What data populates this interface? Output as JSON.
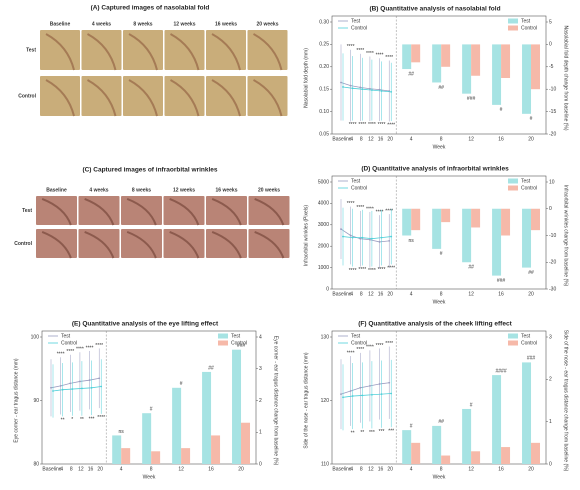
{
  "images": [
    {
      "title": "(A) Captured images of nasolabial fold",
      "columns": [
        "Baseline",
        "4 weeks",
        "8 weeks",
        "12 weeks",
        "16 weeks",
        "20 weeks"
      ],
      "rows": [
        "Test",
        "Control"
      ]
    },
    {
      "title": "(C) Captured images of infraorbital wrinkles",
      "columns": [
        "Baseline",
        "4 weeks",
        "8 weeks",
        "12 weeks",
        "16 weeks",
        "20 weeks"
      ],
      "rows": [
        "Test",
        "Control"
      ]
    }
  ],
  "chart_data": [
    {
      "type": "linebar",
      "title": "(B) Quantitative analysis of nasolabial fold",
      "xlabel": "Week",
      "line": {
        "categories": [
          "Baseline",
          "4",
          "8",
          "12",
          "16",
          "20"
        ],
        "ylabel": "Nasolabial fold depth (mm)",
        "ylim": [
          0.05,
          0.3
        ],
        "yticks": [
          {
            "value": 0.05,
            "label": "0.05"
          },
          {
            "value": 0.1,
            "label": "0.10"
          },
          {
            "value": 0.15,
            "label": "0.15"
          },
          {
            "value": 0.2,
            "label": "0.20"
          },
          {
            "value": 0.25,
            "label": "0.25"
          },
          {
            "value": 0.3,
            "label": "0.30"
          }
        ],
        "series": [
          {
            "name": "Test",
            "color": "#9a9cc0",
            "values": [
              0.165,
              0.158,
              0.154,
              0.151,
              0.149,
              0.146
            ],
            "errors": [
              0.085,
              0.08,
              0.075,
              0.072,
              0.07,
              0.068
            ],
            "sig_labels": [
              null,
              "****",
              "****",
              "****",
              "****",
              "****"
            ]
          },
          {
            "name": "Control",
            "color": "#4fcfd8",
            "values": [
              0.155,
              0.152,
              0.15,
              0.148,
              0.146,
              0.144
            ],
            "errors": [
              0.075,
              0.072,
              0.07,
              0.068,
              0.066,
              0.065
            ],
            "sig_labels": [
              null,
              "****",
              "****",
              "****",
              "****",
              "****"
            ]
          }
        ]
      },
      "bar": {
        "categories": [
          "4",
          "8",
          "12",
          "16",
          "20"
        ],
        "ylabel": "Nasolabial fold depth change from baseline (%)",
        "ylim": [
          -20,
          5
        ],
        "yticks": [
          5,
          0,
          -5,
          -10,
          -15,
          -20
        ],
        "series": [
          {
            "name": "Test",
            "color": "#a6e3e3",
            "values": [
              -5.5,
              -8.5,
              -11,
              -13.5,
              -15.5
            ]
          },
          {
            "name": "Control",
            "color": "#f6b9a9",
            "values": [
              -4,
              -5,
              -7,
              -7.5,
              -10
            ]
          }
        ],
        "sig_labels": [
          "##",
          "##",
          "###",
          "#",
          "#"
        ]
      }
    },
    {
      "type": "linebar",
      "title": "(D) Quantitative analysis of infraorbital wrinkles",
      "xlabel": "Week",
      "line": {
        "categories": [
          "Baseline",
          "4",
          "8",
          "12",
          "16",
          "20"
        ],
        "ylabel": "Infraorbital wrinkles (Pixels)",
        "ylim": [
          0,
          5000
        ],
        "yticks": [
          0,
          1000,
          2000,
          3000,
          4000,
          5000
        ],
        "series": [
          {
            "name": "Test",
            "color": "#9a9cc0",
            "values": [
              2800,
              2500,
              2350,
              2300,
              2200,
              2250
            ],
            "errors": [
              1400,
              1350,
              1300,
              1300,
              1250,
              1250
            ],
            "sig_labels": [
              null,
              "****",
              "****",
              "****",
              "****",
              "****"
            ]
          },
          {
            "name": "Control",
            "color": "#4fcfd8",
            "values": [
              2450,
              2400,
              2400,
              2350,
              2400,
              2450
            ],
            "errors": [
              1350,
              1350,
              1300,
              1300,
              1300,
              1300
            ],
            "sig_labels": [
              null,
              "****",
              "****",
              "****",
              "****",
              "****"
            ]
          }
        ]
      },
      "bar": {
        "categories": [
          "4",
          "8",
          "12",
          "16",
          "20"
        ],
        "ylabel": "Infraorbital wrinkles change from baseline (%)",
        "ylim": [
          -30,
          10
        ],
        "yticks": [
          10,
          0,
          -10,
          -20,
          -30
        ],
        "series": [
          {
            "name": "Test",
            "color": "#a6e3e3",
            "values": [
              -10,
              -15,
              -20,
              -25,
              -22
            ]
          },
          {
            "name": "Control",
            "color": "#f6b9a9",
            "values": [
              -8,
              -5,
              -7,
              -10,
              -8
            ]
          }
        ],
        "sig_labels": [
          "ns",
          "#",
          "##",
          "###",
          "##"
        ]
      }
    },
    {
      "type": "linebar",
      "title": "(E) Quantitative analysis of the eye lifting effect",
      "xlabel": "Week",
      "line": {
        "categories": [
          "Baseline",
          "4",
          "8",
          "12",
          "16",
          "20"
        ],
        "ylabel": "Eye corner - ear tragus distance (mm)",
        "ylim": [
          80,
          100
        ],
        "yticks": [
          80,
          90,
          100
        ],
        "series": [
          {
            "name": "Test",
            "color": "#9a9cc0",
            "values": [
              92,
              92.3,
              92.7,
              93,
              93.2,
              93.5
            ],
            "errors": [
              4.5,
              4.5,
              4.5,
              4.6,
              4.6,
              4.7
            ],
            "sig_labels": [
              null,
              "****",
              "****",
              "****",
              "****",
              "****"
            ]
          },
          {
            "name": "Control",
            "color": "#4fcfd8",
            "values": [
              91.5,
              91.7,
              91.8,
              91.9,
              92,
              92.2
            ],
            "errors": [
              4.2,
              4.2,
              4.2,
              4.3,
              4.3,
              4.3
            ],
            "sig_labels": [
              null,
              "**",
              "*",
              "**",
              "***",
              "****"
            ]
          }
        ]
      },
      "bar": {
        "categories": [
          "4",
          "8",
          "12",
          "16",
          "20"
        ],
        "ylabel": "Eye corner - ear tragus distance change from baseline (%)",
        "ylim": [
          0,
          4
        ],
        "yticks": [
          0,
          1,
          2,
          3,
          4
        ],
        "series": [
          {
            "name": "Test",
            "color": "#a6e3e3",
            "values": [
              0.9,
              1.6,
              2.4,
              2.9,
              3.6
            ]
          },
          {
            "name": "Control",
            "color": "#f6b9a9",
            "values": [
              0.5,
              0.4,
              0.5,
              0.9,
              1.3
            ]
          }
        ],
        "sig_labels": [
          "ns",
          "#",
          "#",
          "##",
          "###"
        ]
      }
    },
    {
      "type": "linebar",
      "title": "(F) Quantitative analysis of the cheek lifting effect",
      "xlabel": "Week",
      "line": {
        "categories": [
          "Baseline",
          "4",
          "8",
          "12",
          "16",
          "20"
        ],
        "ylabel": "Side of the nose - ear tragus distance (mm)",
        "ylim": [
          110,
          130
        ],
        "yticks": [
          110,
          120,
          130
        ],
        "series": [
          {
            "name": "Test",
            "color": "#9a9cc0",
            "values": [
              121,
              121.5,
              122,
              122.3,
              122.6,
              122.8
            ],
            "errors": [
              5.5,
              5.5,
              5.5,
              5.6,
              5.6,
              5.7
            ],
            "sig_labels": [
              null,
              "****",
              "****",
              "****",
              "****",
              "****"
            ]
          },
          {
            "name": "Control",
            "color": "#4fcfd8",
            "values": [
              120.5,
              120.7,
              120.8,
              120.9,
              121,
              121.1
            ],
            "errors": [
              5.2,
              5.2,
              5.2,
              5.3,
              5.3,
              5.3
            ],
            "sig_labels": [
              null,
              "**",
              "**",
              "***",
              "***",
              "***"
            ]
          }
        ]
      },
      "bar": {
        "categories": [
          "4",
          "8",
          "12",
          "16",
          "20"
        ],
        "ylabel": "Side of the nose - ear tragus distance change from baseline (%)",
        "ylim": [
          0,
          3
        ],
        "yticks": [
          0,
          1,
          2,
          3
        ],
        "series": [
          {
            "name": "Test",
            "color": "#a6e3e3",
            "values": [
              0.8,
              0.9,
              1.3,
              2.1,
              2.4
            ]
          },
          {
            "name": "Control",
            "color": "#f6b9a9",
            "values": [
              0.5,
              0.2,
              0.3,
              0.4,
              0.5
            ]
          }
        ],
        "sig_labels": [
          "#",
          "##",
          "#",
          "####",
          "###"
        ]
      }
    }
  ]
}
